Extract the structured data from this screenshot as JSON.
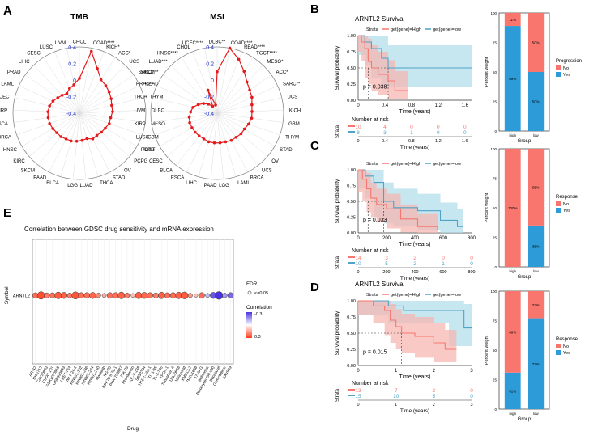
{
  "panels": {
    "A": "A",
    "B": "B",
    "C": "C",
    "D": "D",
    "E": "E"
  },
  "colors": {
    "radar_red": "#e41a1c",
    "km_high": "#f8766d",
    "km_low": "#4fa3c9",
    "km_high_band": "#f6b3ad",
    "km_low_band": "#aeddea",
    "bar_no": "#f8766d",
    "bar_yes": "#2d9bd8",
    "corr_low": "#ff3a1a",
    "corr_mid": "#ffffff",
    "corr_high": "#4a34e0",
    "tick_blue": "#2233cc"
  },
  "chart_data": [
    {
      "id": "tmb-radar",
      "type": "radar",
      "title": "TMB",
      "rlim": [
        -0.4,
        0.4
      ],
      "rings": [
        0.4,
        0.2,
        0,
        -0.2,
        -0.4
      ],
      "ring_labels": [
        "0.4",
        "0.2",
        "0",
        "-0.2",
        "-0.4"
      ],
      "labels": [
        "CHOL",
        "COAD****",
        "KICH*",
        "ACC*",
        "UCS",
        "SARC*",
        "READ",
        "THYM",
        "DLBC",
        "MESO",
        "GBM",
        "TGCT",
        "PCPG",
        "OV",
        "STAD",
        "THCA",
        "LUAD",
        "LGG",
        "BLCA",
        "PAAD",
        "SKCM",
        "KIRC",
        "HNSC",
        "BRCA",
        "ESCA",
        "KIRP",
        "UCEC",
        "LAML",
        "PRAD",
        "LIHC",
        "CESC",
        "LUSC",
        "UVM"
      ],
      "values": [
        0.02,
        0.36,
        0.18,
        0.08,
        0.06,
        0.04,
        0.02,
        0.0,
        0.0,
        -0.02,
        -0.02,
        -0.04,
        -0.05,
        -0.06,
        -0.05,
        -0.08,
        -0.07,
        -0.06,
        -0.05,
        -0.05,
        -0.04,
        -0.04,
        -0.03,
        -0.02,
        -0.02,
        -0.02,
        -0.03,
        -0.05,
        -0.08,
        -0.1,
        -0.12,
        -0.08,
        -0.05
      ]
    },
    {
      "id": "msi-radar",
      "type": "radar",
      "title": "MSI",
      "rlim": [
        -0.4,
        0.4
      ],
      "rings": [
        0.4,
        0.2,
        0,
        -0.2,
        -0.4
      ],
      "ring_labels": [
        "0.4",
        "0.2",
        "0",
        "-0.2",
        "-0.4"
      ],
      "labels": [
        "DLBC**",
        "COAD****",
        "READ****",
        "TGCT****",
        "MESO*",
        "ACC*",
        "SARC**",
        "UCS",
        "KICH",
        "GBM",
        "THYM",
        "STAD",
        "OV",
        "UCS",
        "BRCA",
        "LAML",
        "LGG",
        "PAAD",
        "LIHC",
        "ESCA",
        "BLCA",
        "CESC",
        "PCPG",
        "LUSC",
        "KIRP",
        "UVM",
        "THCA",
        "PRAD*",
        "SKCM**",
        "LUAD***",
        "HNSC****",
        "CHOL",
        "UCEC****"
      ],
      "values": [
        0.1,
        0.4,
        0.3,
        0.2,
        0.12,
        0.08,
        0.06,
        0.03,
        0.02,
        0.02,
        0.0,
        -0.02,
        -0.02,
        -0.03,
        -0.03,
        -0.04,
        -0.04,
        -0.04,
        -0.04,
        -0.05,
        -0.05,
        -0.05,
        -0.05,
        -0.05,
        -0.06,
        -0.08,
        -0.1,
        -0.15,
        -0.2,
        -0.25,
        -0.3,
        -0.1,
        -0.3
      ]
    },
    {
      "id": "km-b",
      "type": "line",
      "title": "ARNTL2 Survival",
      "legend_title": "Strata",
      "legend": [
        "get(gene)=High",
        "get(gene)=low"
      ],
      "xlabel": "Time (years)",
      "ylabel": "Survival probability",
      "xlim": [
        0,
        1.7
      ],
      "xticks": [
        0,
        0.4,
        0.8,
        1.2,
        1.6
      ],
      "xtick_labels": [
        "0",
        "0.4",
        "0.8",
        "1.2",
        "1.6"
      ],
      "yticks": [
        0,
        0.25,
        0.5,
        0.75,
        1
      ],
      "ytick_labels": [
        "0.00",
        "0.25",
        "0.50",
        "0.75",
        "1.00"
      ],
      "pvalue": "p = 0.038",
      "median": [
        0.15,
        0.45
      ],
      "high": {
        "x": [
          0,
          0.05,
          0.1,
          0.15,
          0.2,
          0.3,
          0.45,
          0.55,
          0.75
        ],
        "y": [
          1,
          0.9,
          0.8,
          0.6,
          0.5,
          0.4,
          0.3,
          0.15,
          0.15
        ],
        "lo": [
          1,
          0.75,
          0.6,
          0.35,
          0.25,
          0.15,
          0.08,
          0.02,
          0.02
        ],
        "hi": [
          1,
          1,
          1,
          0.95,
          0.85,
          0.75,
          0.62,
          0.45,
          0.45
        ]
      },
      "low": {
        "x": [
          0,
          0.1,
          0.2,
          0.35,
          0.45,
          1.7
        ],
        "y": [
          1,
          0.9,
          0.8,
          0.65,
          0.5,
          0.5
        ],
        "lo": [
          1,
          0.7,
          0.55,
          0.35,
          0.2,
          0.2
        ],
        "hi": [
          1,
          1,
          1,
          1,
          0.85,
          0.85
        ]
      },
      "risk_title": "Number at risk",
      "risk_high": [
        "10",
        "4",
        "0",
        "0",
        "0"
      ],
      "risk_low": [
        "8",
        "3",
        "1",
        "0",
        "0"
      ]
    },
    {
      "id": "km-c",
      "type": "line",
      "legend_title": "Strata",
      "legend": [
        "get(gene)=High",
        "get(gene)=low"
      ],
      "xlabel": "Time (years)",
      "ylabel": "Survival probability",
      "xlim": [
        0,
        800
      ],
      "xticks": [
        0,
        200,
        400,
        600,
        800
      ],
      "xtick_labels": [
        "0",
        "200",
        "400",
        "600",
        "800"
      ],
      "yticks": [
        0,
        0.25,
        0.5,
        0.75,
        1
      ],
      "ytick_labels": [
        "0.00",
        "0.25",
        "0.50",
        "0.75",
        "1.00"
      ],
      "pvalue": "p = 0.033",
      "median": [
        70,
        180
      ],
      "high": {
        "x": [
          0,
          30,
          60,
          90,
          130,
          200,
          300,
          420,
          560
        ],
        "y": [
          1,
          0.85,
          0.7,
          0.55,
          0.45,
          0.38,
          0.22,
          0.1,
          0.05
        ],
        "lo": [
          1,
          0.65,
          0.5,
          0.33,
          0.25,
          0.18,
          0.07,
          0.01,
          0.0
        ],
        "hi": [
          1,
          1,
          0.95,
          0.8,
          0.7,
          0.62,
          0.45,
          0.3,
          0.25
        ]
      },
      "low": {
        "x": [
          0,
          50,
          110,
          180,
          250,
          420,
          580,
          700,
          740
        ],
        "y": [
          1,
          0.9,
          0.8,
          0.5,
          0.4,
          0.35,
          0.2,
          0.1,
          0.1
        ],
        "lo": [
          1,
          0.7,
          0.55,
          0.25,
          0.15,
          0.1,
          0.04,
          0.0,
          0.0
        ],
        "hi": [
          1,
          1,
          1,
          0.8,
          0.7,
          0.62,
          0.48,
          0.38,
          0.38
        ]
      },
      "risk_title": "Number at risk",
      "risk_high": [
        "14",
        "3",
        "2",
        "0",
        "0"
      ],
      "risk_low": [
        "10",
        "5",
        "2",
        "1",
        "0"
      ]
    },
    {
      "id": "km-d",
      "type": "line",
      "title": "ARNTL2 Survival",
      "legend_title": "Strata",
      "legend": [
        "get(gene)=High",
        "get(gene)=low"
      ],
      "xlabel": "Time (years)",
      "ylabel": "Survival probability",
      "xlim": [
        0,
        3
      ],
      "xticks": [
        0,
        1,
        2,
        3
      ],
      "xtick_labels": [
        "0",
        "1",
        "2",
        "3"
      ],
      "yticks": [
        0,
        0.25,
        0.5,
        0.75,
        1
      ],
      "ytick_labels": [
        "0.00",
        "0.25",
        "0.50",
        "0.75",
        "1.00"
      ],
      "pvalue": "p = 0.015",
      "median": [
        1.15,
        null
      ],
      "high": {
        "x": [
          0,
          0.4,
          0.7,
          0.85,
          1.0,
          1.15,
          1.5,
          2.0,
          2.3,
          2.6
        ],
        "y": [
          1,
          0.92,
          0.85,
          0.7,
          0.6,
          0.5,
          0.45,
          0.35,
          0.25,
          0.25
        ],
        "lo": [
          1,
          0.78,
          0.65,
          0.47,
          0.35,
          0.25,
          0.2,
          0.12,
          0.05,
          0.05
        ],
        "hi": [
          1,
          1,
          1,
          0.95,
          0.87,
          0.8,
          0.75,
          0.65,
          0.55,
          0.55
        ]
      },
      "low": {
        "x": [
          0,
          0.8,
          1.2,
          1.8,
          2.4,
          2.8,
          3.0
        ],
        "y": [
          1,
          0.92,
          0.85,
          0.85,
          0.85,
          0.58,
          0.58
        ],
        "lo": [
          1,
          0.78,
          0.65,
          0.65,
          0.65,
          0.3,
          0.3
        ],
        "hi": [
          1,
          1,
          1,
          1,
          1,
          0.95,
          0.95
        ]
      },
      "risk_title": "Number at risk",
      "risk_high": [
        "13",
        "7",
        "2",
        "0"
      ],
      "risk_low": [
        "15",
        "10",
        "5",
        "0"
      ]
    },
    {
      "id": "bar-b",
      "type": "bar",
      "stacked": true,
      "categories": [
        "high",
        "low"
      ],
      "series": [
        {
          "name": "No",
          "values": [
            11,
            50
          ]
        },
        {
          "name": "Yes",
          "values": [
            89,
            50
          ]
        }
      ],
      "labels": [
        [
          "11%",
          "50%"
        ],
        [
          "89%",
          "50%"
        ]
      ],
      "legend_title": "Progression",
      "xlabel": "Group",
      "ylabel": "Percent weight",
      "ylim": [
        0,
        100
      ],
      "yticks": [
        "0",
        "25",
        "50",
        "75",
        "100"
      ]
    },
    {
      "id": "bar-c",
      "type": "bar",
      "stacked": true,
      "categories": [
        "high",
        "low"
      ],
      "series": [
        {
          "name": "No",
          "values": [
            100,
            65
          ]
        },
        {
          "name": "Yes",
          "values": [
            0,
            35
          ]
        }
      ],
      "labels": [
        [
          "100%",
          "65%"
        ],
        [
          "",
          "35%"
        ]
      ],
      "legend_title": "Response",
      "xlabel": "Group",
      "ylabel": "Percent weight",
      "ylim": [
        0,
        100
      ],
      "yticks": [
        "0",
        "25",
        "50",
        "75",
        "100"
      ]
    },
    {
      "id": "bar-d",
      "type": "bar",
      "stacked": true,
      "categories": [
        "high",
        "low"
      ],
      "series": [
        {
          "name": "No",
          "values": [
            69,
            23
          ]
        },
        {
          "name": "Yes",
          "values": [
            31,
            77
          ]
        }
      ],
      "labels": [
        [
          "69%",
          "23%"
        ],
        [
          "31%",
          "77%"
        ]
      ],
      "legend_title": "Response",
      "xlabel": "Group",
      "ylabel": "Percent weight",
      "ylim": [
        0,
        100
      ],
      "yticks": [
        "0",
        "25",
        "50",
        "75",
        "100"
      ]
    },
    {
      "id": "dot-e",
      "type": "scatter",
      "title": "Correlation between GDSC drug sensitivity and mRNA expression",
      "xlabel": "Drug",
      "ylabel": "Symbol",
      "symbol": "ARNTL2",
      "drugs": [
        "AR-42",
        "BHG712",
        "CAY10603",
        "CUDC-101",
        "GSK1070916",
        "GSK690693",
        "I-BET-762",
        "JW-7-24-1",
        "KIN001-102",
        "KIN001-236",
        "KIN001-244",
        "KIN001-260",
        "Masitinib",
        "NG-25",
        "NPK76-II-72-1",
        "PHA-793887",
        "PIK-93",
        "Phenformin",
        "QL-X-138",
        "SB52334",
        "THZ-2-102-1",
        "TL-1-85",
        "TL-2-105",
        "TPCA-1",
        "Tubastatin A",
        "UNC0638",
        "Vorinostat",
        "XMD13-2",
        "YM201636",
        "17-AAG",
        "Belinostat",
        "Bleomycin (50 uM)",
        "Docetaxel",
        "Gemcitabine",
        "XAV939"
      ],
      "corr": [
        0.22,
        0.27,
        0.2,
        0.22,
        0.25,
        0.24,
        0.2,
        0.26,
        0.22,
        0.22,
        0.23,
        0.18,
        0.12,
        0.22,
        0.22,
        0.24,
        0.2,
        0.1,
        0.24,
        0.23,
        0.22,
        0.2,
        0.24,
        0.22,
        0.22,
        0.24,
        0.25,
        0.16,
        0.1,
        0.22,
        -0.1,
        -0.25,
        -0.3,
        -0.15,
        -0.22
      ],
      "size": [
        0.55,
        0.95,
        0.5,
        0.55,
        0.8,
        0.7,
        0.45,
        0.9,
        0.6,
        0.6,
        0.7,
        0.4,
        0.3,
        0.6,
        0.6,
        0.8,
        0.45,
        0.25,
        0.75,
        0.7,
        0.6,
        0.5,
        0.75,
        0.55,
        0.6,
        0.75,
        0.85,
        0.35,
        0.2,
        0.6,
        0.3,
        0.7,
        1.0,
        0.4,
        0.6
      ],
      "legend_fdr_title": "FDR",
      "legend_fdr_item": "<=0.05",
      "legend_corr_title": "Correlation",
      "corr_ticks": [
        "-0.3",
        "0.3"
      ]
    }
  ]
}
